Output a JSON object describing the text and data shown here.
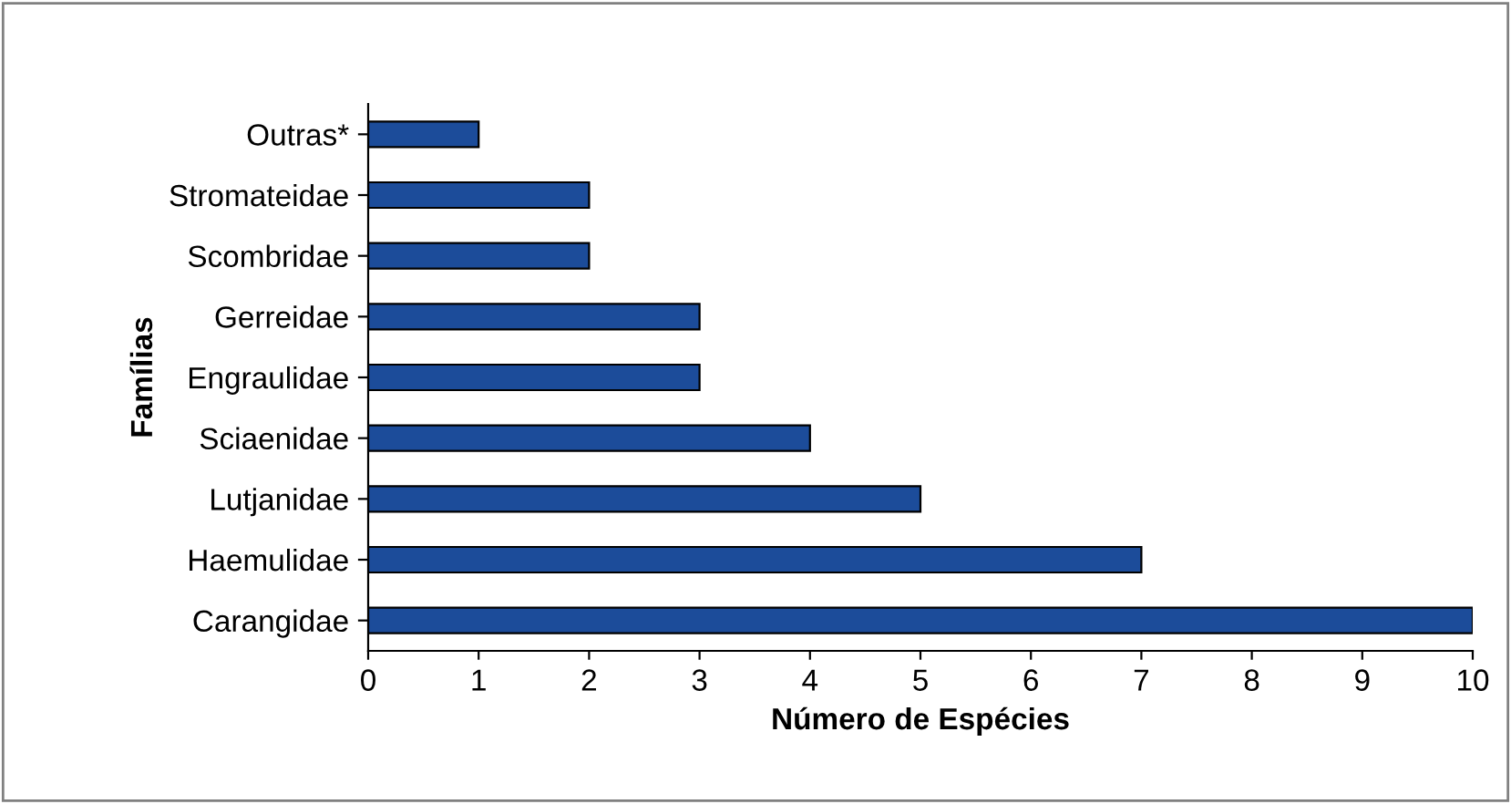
{
  "chart_data": {
    "type": "bar",
    "orientation": "horizontal",
    "categories": [
      "Outras*",
      "Stromateidae",
      "Scombridae",
      "Gerreidae",
      "Engraulidae",
      "Sciaenidae",
      "Lutjanidae",
      "Haemulidae",
      "Carangidae"
    ],
    "values": [
      1,
      2,
      2,
      3,
      3,
      4,
      5,
      7,
      10
    ],
    "color": "#1c4c9a",
    "xlim": [
      0,
      10
    ],
    "xticks": [
      0,
      1,
      2,
      3,
      4,
      5,
      6,
      7,
      8,
      9,
      10
    ],
    "xlabel": "Número de Espécies",
    "ylabel": "Famílias",
    "grid": false,
    "legend": false
  }
}
